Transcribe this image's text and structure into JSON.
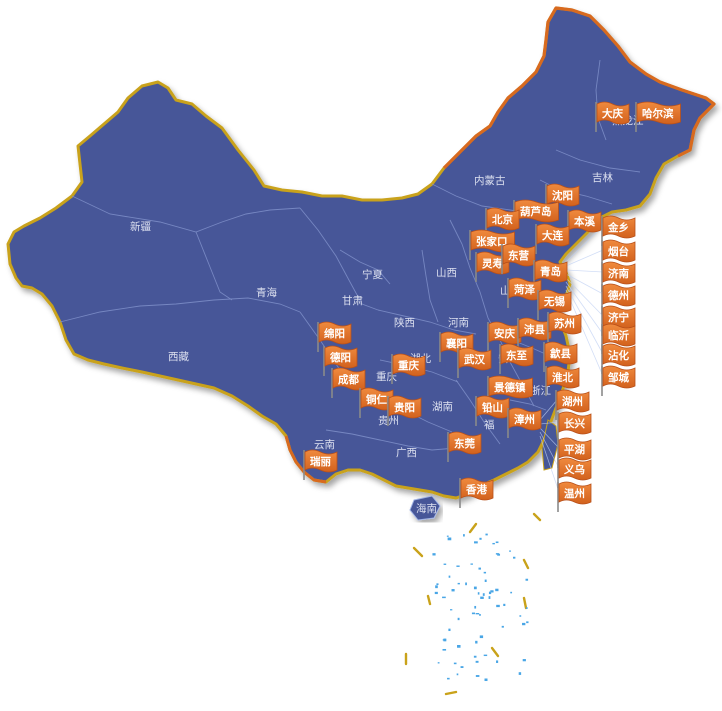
{
  "colors": {
    "land": "#465798",
    "border_outer": "#c9a21a",
    "border_east": "#d86a1f",
    "flag_fill": "#e8752a",
    "flag_dark": "#b8501a",
    "pole": "#8a8a8a",
    "sea_islands": "#49a6e6",
    "dash": "#c9a21a"
  },
  "regions": [
    {
      "name": "新疆"
    },
    {
      "name": "西藏"
    },
    {
      "name": "青海"
    },
    {
      "name": "甘肃"
    },
    {
      "name": "宁夏"
    },
    {
      "name": "内蒙古"
    },
    {
      "name": "吉林"
    },
    {
      "name": "黑龙江"
    },
    {
      "name": "山西"
    },
    {
      "name": "河南"
    },
    {
      "name": "陕西"
    },
    {
      "name": "湖北"
    },
    {
      "name": "重庆"
    },
    {
      "name": "湖南"
    },
    {
      "name": "贵州"
    },
    {
      "name": "广西"
    },
    {
      "name": "云南"
    },
    {
      "name": "浙江"
    },
    {
      "name": "海南"
    },
    {
      "name": "山"
    },
    {
      "name": "安"
    },
    {
      "name": "福"
    }
  ],
  "cities": [
    {
      "name": "大庆"
    },
    {
      "name": "哈尔滨"
    },
    {
      "name": "沈阳"
    },
    {
      "name": "葫芦岛"
    },
    {
      "name": "北京"
    },
    {
      "name": "本溪"
    },
    {
      "name": "张家口"
    },
    {
      "name": "大连"
    },
    {
      "name": "灵寿"
    },
    {
      "name": "东营"
    },
    {
      "name": "青岛"
    },
    {
      "name": "菏泽"
    },
    {
      "name": "无锡"
    },
    {
      "name": "绵阳"
    },
    {
      "name": "德阳"
    },
    {
      "name": "成都"
    },
    {
      "name": "襄阳"
    },
    {
      "name": "安庆"
    },
    {
      "name": "沛县"
    },
    {
      "name": "苏州"
    },
    {
      "name": "武汉"
    },
    {
      "name": "东至"
    },
    {
      "name": "歙县"
    },
    {
      "name": "重庆"
    },
    {
      "name": "淮北"
    },
    {
      "name": "景德镇"
    },
    {
      "name": "铜仁"
    },
    {
      "name": "贵阳"
    },
    {
      "name": "铅山"
    },
    {
      "name": "湖州"
    },
    {
      "name": "漳州"
    },
    {
      "name": "长兴"
    },
    {
      "name": "东莞"
    },
    {
      "name": "平湖"
    },
    {
      "name": "瑞丽"
    },
    {
      "name": "义乌"
    },
    {
      "name": "香港"
    },
    {
      "name": "温州"
    },
    {
      "name": "金乡"
    },
    {
      "name": "烟台"
    },
    {
      "name": "济南"
    },
    {
      "name": "德州"
    },
    {
      "name": "济宁"
    },
    {
      "name": "临沂"
    },
    {
      "name": "沾化"
    },
    {
      "name": "邹城"
    }
  ]
}
